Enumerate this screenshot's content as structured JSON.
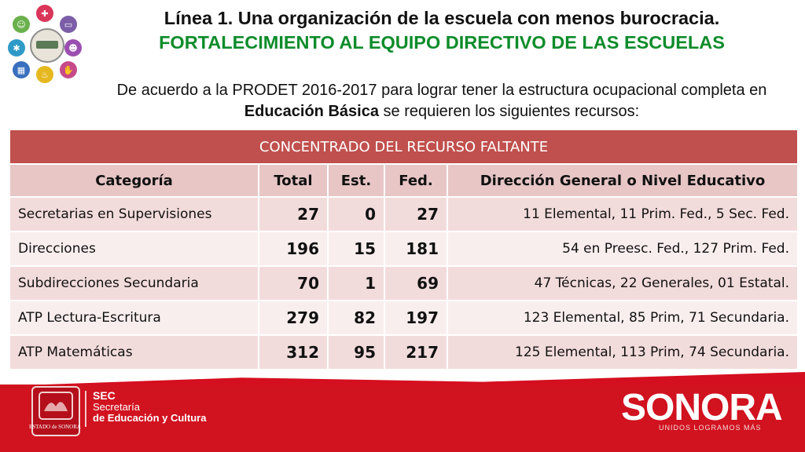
{
  "header": {
    "title_line1": "Línea 1. Una organización de la escuela con menos burocracia.",
    "title_line2": "FORTALECIMIENTO AL EQUIPO DIRECTIVO DE LAS ESCUELAS",
    "intro_part1": "De acuerdo a la PRODET 2016-2017 para lograr tener la estructura ocupacional completa en ",
    "intro_bold": "Educación Básica",
    "intro_part2": " se requieren los siguientes recursos:"
  },
  "table": {
    "title": "CONCENTRADO DEL RECURSO FALTANTE",
    "columns": [
      "Categoría",
      "Total",
      "Est.",
      "Fed.",
      "Dirección General o Nivel Educativo"
    ],
    "rows": [
      {
        "categoria": "Secretarias en Supervisiones",
        "total": "27",
        "est": "0",
        "fed": "27",
        "direccion": "11 Elemental, 11 Prim. Fed., 5 Sec. Fed."
      },
      {
        "categoria": "Direcciones",
        "total": "196",
        "est": "15",
        "fed": "181",
        "direccion": "54 en Preesc. Fed., 127 Prim. Fed."
      },
      {
        "categoria": "Subdirecciones Secundaria",
        "total": "70",
        "est": "1",
        "fed": "69",
        "direccion": "47 Técnicas, 22 Generales,  01 Estatal."
      },
      {
        "categoria": "ATP Lectura-Escritura",
        "total": "279",
        "est": "82",
        "fed": "197",
        "direccion": "123 Elemental, 85 Prim, 71 Secundaria."
      },
      {
        "categoria": "ATP Matemáticas",
        "total": "312",
        "est": "95",
        "fed": "217",
        "direccion": "125 Elemental, 113 Prim, 74 Secundaria."
      }
    ]
  },
  "footer": {
    "sec_abbr": "SEC",
    "sec_line1": "Secretaría",
    "sec_line2": "de Educación y Cultura",
    "emblem_caption": "ESTADO de SONORA",
    "brand": "SONORA",
    "slogan": "UNIDOS LOGRAMOS MÁS"
  },
  "colors": {
    "accent_red": "#c0504d",
    "title_green": "#0d8c2a",
    "footer_red": "#d1121f"
  },
  "icons": [
    "users-icon",
    "gear-icon",
    "monitor-icon",
    "people-icon",
    "handshake-icon",
    "bell-icon",
    "calendar-icon",
    "book-icon",
    "school-icon"
  ]
}
